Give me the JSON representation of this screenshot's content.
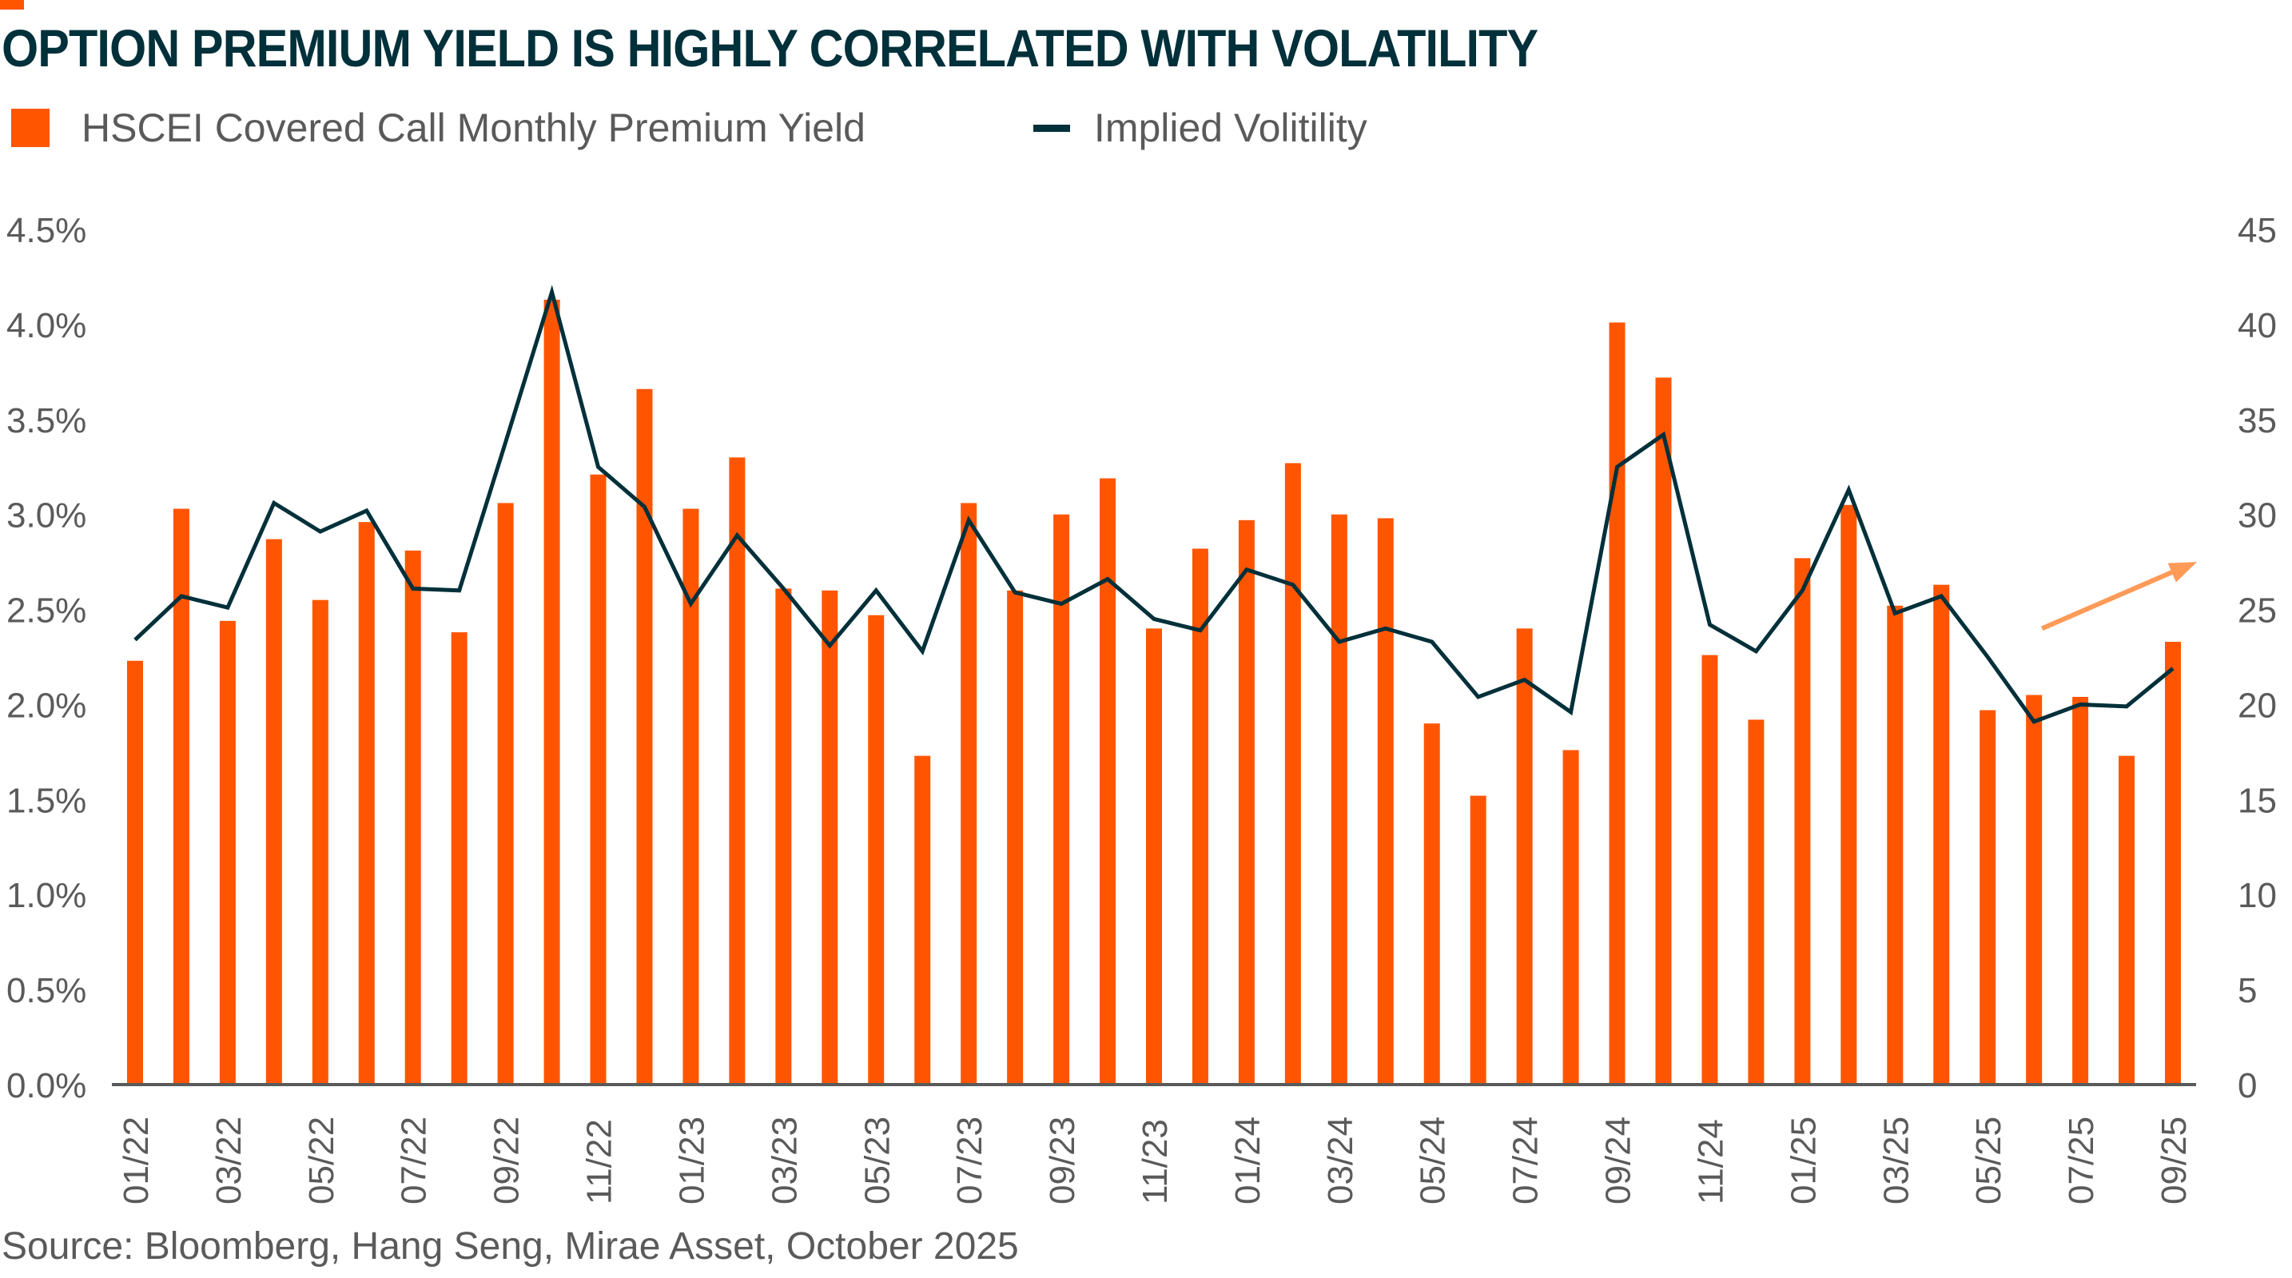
{
  "title": "OPTION PREMIUM YIELD IS HIGHLY CORRELATED WITH VOLATILITY",
  "source": "Source: Bloomberg, Hang Seng, Mirae Asset, October 2025",
  "colors": {
    "bar": "#FF5500",
    "line": "#00303A",
    "arrow": "#FF9A57",
    "axis": "#5A5A5A"
  },
  "chart_data": {
    "type": "bar+line",
    "title": "OPTION PREMIUM YIELD IS HIGHLY CORRELATED WITH VOLATILITY",
    "legend": [
      "HSCEI Covered Call Monthly Premium Yield",
      "Implied Volitility"
    ],
    "legend_position": "top-left",
    "categories": [
      "01/22",
      "02/22",
      "03/22",
      "04/22",
      "05/22",
      "06/22",
      "07/22",
      "08/22",
      "09/22",
      "10/22",
      "11/22",
      "12/22",
      "01/23",
      "02/23",
      "03/23",
      "04/23",
      "05/23",
      "06/23",
      "07/23",
      "08/23",
      "09/23",
      "10/23",
      "11/23",
      "12/23",
      "01/24",
      "02/24",
      "03/24",
      "04/24",
      "05/24",
      "06/24",
      "07/24",
      "08/24",
      "09/24",
      "10/24",
      "11/24",
      "12/24",
      "01/25",
      "02/25",
      "03/25",
      "04/25",
      "05/25",
      "06/25",
      "07/25",
      "08/25",
      "09/25"
    ],
    "x_tick_labels": [
      "01/22",
      "03/22",
      "05/22",
      "07/22",
      "09/22",
      "11/22",
      "01/23",
      "03/23",
      "05/23",
      "07/23",
      "09/23",
      "11/23",
      "01/24",
      "03/24",
      "05/24",
      "07/24",
      "09/24",
      "11/24",
      "01/25",
      "03/25",
      "05/25",
      "07/25",
      "09/25"
    ],
    "series": [
      {
        "name": "HSCEI Covered Call Monthly Premium Yield",
        "type": "bar",
        "axis": "left",
        "unit": "%",
        "values": [
          2.23,
          3.03,
          2.44,
          2.87,
          2.55,
          2.96,
          2.81,
          2.38,
          3.06,
          4.13,
          3.21,
          3.66,
          3.03,
          3.3,
          2.61,
          2.6,
          2.47,
          1.73,
          3.06,
          2.6,
          3.0,
          3.19,
          2.4,
          2.82,
          2.97,
          3.27,
          3.0,
          2.98,
          1.9,
          1.52,
          2.4,
          1.76,
          4.01,
          3.72,
          2.26,
          1.92,
          2.77,
          3.05,
          2.52,
          2.63,
          1.97,
          2.05,
          2.04,
          1.73,
          2.33
        ]
      },
      {
        "name": "Implied Volitility",
        "type": "line",
        "axis": "right",
        "values": [
          23.4,
          25.7,
          25.1,
          30.6,
          29.1,
          30.2,
          26.1,
          26.0,
          33.8,
          41.7,
          32.5,
          30.4,
          25.3,
          28.9,
          26.1,
          23.1,
          26.0,
          22.8,
          29.7,
          25.9,
          25.3,
          26.6,
          24.5,
          23.9,
          27.1,
          26.3,
          23.3,
          24.0,
          23.3,
          20.4,
          21.3,
          19.6,
          32.5,
          34.2,
          24.2,
          22.8,
          26.0,
          31.3,
          24.8,
          25.7,
          22.5,
          19.1,
          20.0,
          19.9,
          21.9
        ]
      }
    ],
    "y_left": {
      "ylim": [
        0,
        4.5
      ],
      "ticks": [
        "0.0%",
        "0.5%",
        "1.0%",
        "1.5%",
        "2.0%",
        "2.5%",
        "3.0%",
        "3.5%",
        "4.0%",
        "4.5%"
      ]
    },
    "y_right": {
      "ylim": [
        0,
        45
      ],
      "ticks": [
        "0",
        "5",
        "10",
        "15",
        "20",
        "25",
        "30",
        "35",
        "40",
        "45"
      ]
    },
    "grid": false,
    "annotation": {
      "type": "arrow",
      "direction": "up-right",
      "from_category": "06/25",
      "to_category": "09/25",
      "from_value_right": 24,
      "to_value_right": 27.5
    }
  }
}
